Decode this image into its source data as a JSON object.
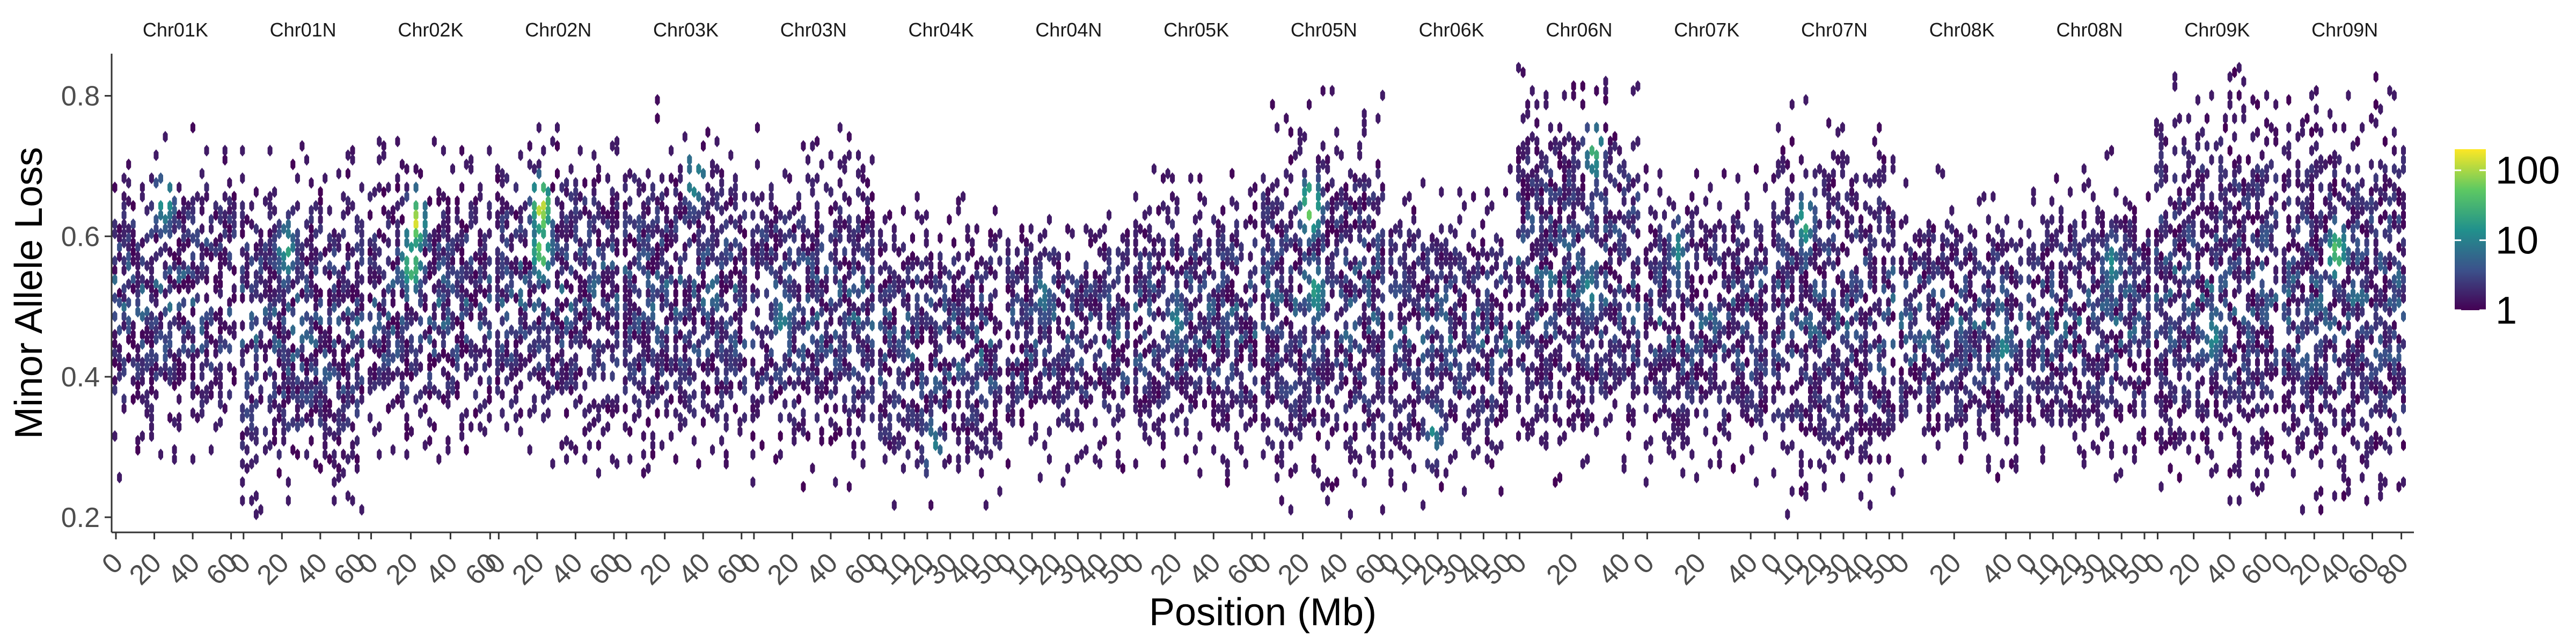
{
  "chart_data": {
    "type": "heatmap",
    "subtype": "hexbin-faceted",
    "xlabel": "Position (Mb)",
    "ylabel": "Minor Allele Loss",
    "ylim": [
      0.18,
      0.86
    ],
    "y_ticks": [
      0.2,
      0.4,
      0.6,
      0.8
    ],
    "y_tick_labels": [
      "0.2",
      "0.4",
      "0.6",
      "0.8"
    ],
    "grid": false,
    "legend": {
      "placement": "right",
      "scale": "log10",
      "range": [
        1,
        200
      ],
      "ticks": [
        1,
        10,
        100
      ],
      "tick_labels": [
        "1",
        "10",
        "100"
      ],
      "colors": [
        "#440154",
        "#3b528b",
        "#21918c",
        "#5ec962",
        "#fde725"
      ]
    },
    "facets": [
      {
        "label": "Chr01K",
        "xmax": 62,
        "ticks": [
          0,
          20,
          40,
          60
        ],
        "tick_labels": [
          "0",
          "20",
          "40",
          "60"
        ],
        "band": [
          0.32,
          0.7
        ],
        "hotspots": [
          {
            "x": 25,
            "y": 0.65,
            "level": 0.6
          }
        ]
      },
      {
        "label": "Chr01N",
        "xmax": 62,
        "ticks": [
          0,
          20,
          40,
          60
        ],
        "tick_labels": [
          "0",
          "20",
          "40",
          "60"
        ],
        "band": [
          0.25,
          0.68
        ],
        "hotspots": [
          {
            "x": 22,
            "y": 0.58,
            "level": 0.55
          }
        ]
      },
      {
        "label": "Chr02K",
        "xmax": 60,
        "ticks": [
          0,
          20,
          40,
          60
        ],
        "tick_labels": [
          "0",
          "20",
          "40",
          "60"
        ],
        "band": [
          0.32,
          0.68
        ],
        "hotspots": [
          {
            "x": 22,
            "y": 0.62,
            "level": 0.95
          },
          {
            "x": 20,
            "y": 0.56,
            "level": 0.8
          }
        ]
      },
      {
        "label": "Chr02N",
        "xmax": 62,
        "ticks": [
          0,
          20,
          40,
          60
        ],
        "tick_labels": [
          "0",
          "20",
          "40",
          "60"
        ],
        "band": [
          0.32,
          0.72
        ],
        "hotspots": [
          {
            "x": 22,
            "y": 0.64,
            "level": 1.0
          },
          {
            "x": 22,
            "y": 0.58,
            "level": 0.85
          }
        ]
      },
      {
        "label": "Chr03K",
        "xmax": 62,
        "ticks": [
          0,
          20,
          40,
          60
        ],
        "tick_labels": [
          "0",
          "20",
          "40",
          "60"
        ],
        "band": [
          0.3,
          0.72
        ],
        "hotspots": [
          {
            "x": 35,
            "y": 0.68,
            "level": 0.6
          }
        ]
      },
      {
        "label": "Chr03N",
        "xmax": 62,
        "ticks": [
          0,
          20,
          40,
          60
        ],
        "tick_labels": [
          "0",
          "20",
          "40",
          "60"
        ],
        "band": [
          0.3,
          0.7
        ],
        "hotspots": [
          {
            "x": 15,
            "y": 0.48,
            "level": 0.45
          }
        ]
      },
      {
        "label": "Chr04K",
        "xmax": 52,
        "ticks": [
          0,
          10,
          20,
          30,
          40,
          50
        ],
        "tick_labels": [
          "0",
          "10",
          "20",
          "30",
          "40",
          "50"
        ],
        "band": [
          0.26,
          0.62
        ],
        "hotspots": [
          {
            "x": 22,
            "y": 0.3,
            "level": 0.45
          }
        ]
      },
      {
        "label": "Chr04N",
        "xmax": 52,
        "ticks": [
          0,
          10,
          20,
          30,
          40,
          50
        ],
        "tick_labels": [
          "0",
          "10",
          "20",
          "30",
          "40",
          "50"
        ],
        "band": [
          0.3,
          0.62
        ],
        "hotspots": [
          {
            "x": 15,
            "y": 0.52,
            "level": 0.4
          }
        ]
      },
      {
        "label": "Chr05K",
        "xmax": 62,
        "ticks": [
          0,
          20,
          40,
          60
        ],
        "tick_labels": [
          "0",
          "20",
          "40",
          "60"
        ],
        "band": [
          0.3,
          0.66
        ],
        "hotspots": [
          {
            "x": 20,
            "y": 0.48,
            "level": 0.45
          }
        ]
      },
      {
        "label": "Chr05N",
        "xmax": 62,
        "ticks": [
          0,
          20,
          40,
          60
        ],
        "tick_labels": [
          "0",
          "20",
          "40",
          "60"
        ],
        "band": [
          0.26,
          0.74
        ],
        "hotspots": [
          {
            "x": 24,
            "y": 0.64,
            "level": 0.9
          },
          {
            "x": 26,
            "y": 0.52,
            "level": 0.55
          }
        ]
      },
      {
        "label": "Chr06K",
        "xmax": 52,
        "ticks": [
          0,
          10,
          20,
          30,
          40,
          50
        ],
        "tick_labels": [
          "0",
          "10",
          "20",
          "30",
          "40",
          "50"
        ],
        "band": [
          0.28,
          0.64
        ],
        "hotspots": [
          {
            "x": 18,
            "y": 0.32,
            "level": 0.45
          }
        ]
      },
      {
        "label": "Chr06N",
        "xmax": 46,
        "ticks": [
          0,
          20,
          40
        ],
        "tick_labels": [
          "0",
          "20",
          "40"
        ],
        "band": [
          0.3,
          0.78
        ],
        "hotspots": [
          {
            "x": 28,
            "y": 0.72,
            "level": 0.65
          },
          {
            "x": 26,
            "y": 0.52,
            "level": 0.5
          }
        ]
      },
      {
        "label": "Chr07K",
        "xmax": 46,
        "ticks": [
          0,
          20,
          40
        ],
        "tick_labels": [
          "0",
          "20",
          "40"
        ],
        "band": [
          0.3,
          0.66
        ],
        "hotspots": [
          {
            "x": 12,
            "y": 0.58,
            "level": 0.45
          }
        ]
      },
      {
        "label": "Chr07N",
        "xmax": 52,
        "ticks": [
          0,
          10,
          20,
          30,
          40,
          50
        ],
        "tick_labels": [
          "0",
          "10",
          "20",
          "30",
          "40",
          "50"
        ],
        "band": [
          0.26,
          0.72
        ],
        "hotspots": [
          {
            "x": 13,
            "y": 0.62,
            "level": 0.6
          }
        ]
      },
      {
        "label": "Chr08K",
        "xmax": 46,
        "ticks": [
          0,
          20,
          40
        ],
        "tick_labels": [
          "0",
          "20",
          "40"
        ],
        "band": [
          0.3,
          0.64
        ],
        "hotspots": [
          {
            "x": 38,
            "y": 0.44,
            "level": 0.45
          }
        ]
      },
      {
        "label": "Chr08N",
        "xmax": 52,
        "ticks": [
          0,
          10,
          20,
          30,
          40,
          50
        ],
        "tick_labels": [
          "0",
          "10",
          "20",
          "30",
          "40",
          "50"
        ],
        "band": [
          0.3,
          0.66
        ],
        "hotspots": [
          {
            "x": 35,
            "y": 0.56,
            "level": 0.45
          }
        ]
      },
      {
        "label": "Chr09K",
        "xmax": 66,
        "ticks": [
          0,
          20,
          40,
          60
        ],
        "tick_labels": [
          "0",
          "20",
          "40",
          "60"
        ],
        "band": [
          0.28,
          0.78
        ],
        "hotspots": [
          {
            "x": 30,
            "y": 0.46,
            "level": 0.5
          }
        ]
      },
      {
        "label": "Chr09N",
        "xmax": 82,
        "ticks": [
          0,
          20,
          40,
          60,
          80
        ],
        "tick_labels": [
          "0",
          "20",
          "40",
          "60",
          "80"
        ],
        "band": [
          0.26,
          0.76
        ],
        "hotspots": [
          {
            "x": 35,
            "y": 0.58,
            "level": 0.75
          }
        ]
      }
    ]
  }
}
